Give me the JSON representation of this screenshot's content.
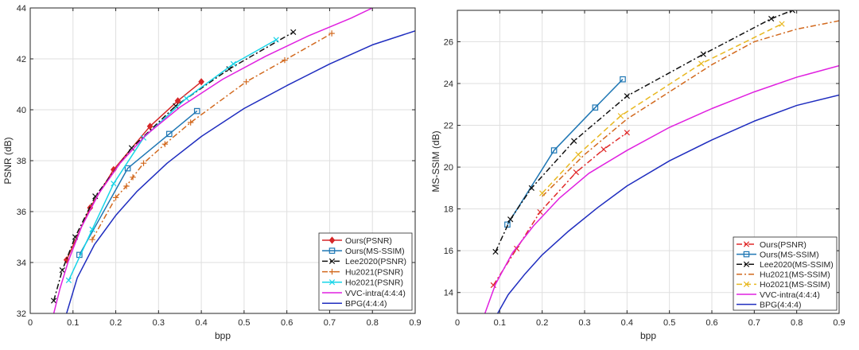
{
  "chart_data": [
    {
      "type": "line",
      "xlabel": "bpp",
      "ylabel": "PSNR (dB)",
      "xlim": [
        0,
        0.9
      ],
      "ylim": [
        32,
        44
      ],
      "xticks": [
        0,
        0.1,
        0.2,
        0.3,
        0.4,
        0.5,
        0.6,
        0.7,
        0.8,
        0.9
      ],
      "yticks": [
        32,
        34,
        36,
        38,
        40,
        42,
        44
      ],
      "legend_position": "bottom-right",
      "series": [
        {
          "name": "Ours(PSNR)",
          "color": "#d62728",
          "dash": "solid",
          "marker": "diamond",
          "markers": true,
          "x": [
            0.085,
            0.14,
            0.195,
            0.28,
            0.345,
            0.4
          ],
          "y": [
            34.1,
            36.15,
            37.65,
            39.35,
            40.35,
            41.1
          ]
        },
        {
          "name": "Ours(MS-SSIM)",
          "color": "#1f77b4",
          "dash": "solid",
          "marker": "square",
          "markers": true,
          "x": [
            0.115,
            0.228,
            0.325,
            0.39
          ],
          "y": [
            34.3,
            37.7,
            39.05,
            39.95
          ]
        },
        {
          "name": "Lee2020(PSNR)",
          "color": "#111111",
          "dash": "dashdot",
          "marker": "x",
          "markers": true,
          "x": [
            0.055,
            0.075,
            0.105,
            0.152,
            0.237,
            0.34,
            0.465,
            0.615
          ],
          "y": [
            32.5,
            33.7,
            35.0,
            36.6,
            38.5,
            40.15,
            41.6,
            43.05
          ]
        },
        {
          "name": "Hu2021(PSNR)",
          "color": "#d2691e",
          "dash": "dashdot",
          "marker": "plus",
          "markers": true,
          "x": [
            0.145,
            0.2,
            0.225,
            0.24,
            0.265,
            0.315,
            0.375,
            0.505,
            0.595,
            0.705
          ],
          "y": [
            34.9,
            36.55,
            37.0,
            37.35,
            37.9,
            38.65,
            39.5,
            41.1,
            41.95,
            43.0
          ]
        },
        {
          "name": "Ho2021(PSNR)",
          "color": "#17d4e8",
          "dash": "solid",
          "marker": "x",
          "markers": true,
          "x": [
            0.09,
            0.145,
            0.195,
            0.265,
            0.365,
            0.475,
            0.575
          ],
          "y": [
            33.3,
            35.3,
            37.1,
            38.9,
            40.45,
            41.8,
            42.75
          ]
        },
        {
          "name": "VVC-intra(4:4:4)",
          "color": "#e020e0",
          "dash": "solid",
          "marker": "none",
          "markers": false,
          "x": [
            0.055,
            0.07,
            0.09,
            0.12,
            0.16,
            0.21,
            0.27,
            0.35,
            0.45,
            0.55,
            0.65,
            0.75,
            0.8
          ],
          "y": [
            32.0,
            33.0,
            34.1,
            35.4,
            36.7,
            37.9,
            39.0,
            40.1,
            41.2,
            42.1,
            42.9,
            43.6,
            44.0
          ]
        },
        {
          "name": "BPG(4:4:4)",
          "color": "#1f2dbf",
          "dash": "solid",
          "marker": "none",
          "markers": false,
          "x": [
            0.085,
            0.11,
            0.15,
            0.2,
            0.25,
            0.32,
            0.4,
            0.5,
            0.6,
            0.7,
            0.8,
            0.9
          ],
          "y": [
            32.0,
            33.4,
            34.7,
            35.85,
            36.8,
            37.9,
            38.95,
            40.05,
            40.95,
            41.8,
            42.55,
            43.1
          ]
        }
      ]
    },
    {
      "type": "line",
      "xlabel": "bpp",
      "ylabel": "MS-SSIM (dB)",
      "xlim": [
        0,
        0.9
      ],
      "ylim": [
        13,
        27.5
      ],
      "xticks": [
        0,
        0.1,
        0.2,
        0.3,
        0.4,
        0.5,
        0.6,
        0.7,
        0.8,
        0.9
      ],
      "yticks": [
        14,
        16,
        18,
        20,
        22,
        24,
        26
      ],
      "legend_position": "bottom-right",
      "series": [
        {
          "name": "Ours(PSNR)",
          "color": "#e02828",
          "dash": "dashdot",
          "marker": "x",
          "markers": true,
          "x": [
            0.085,
            0.14,
            0.195,
            0.28,
            0.345,
            0.4
          ],
          "y": [
            14.35,
            16.1,
            17.85,
            19.75,
            20.85,
            21.65
          ]
        },
        {
          "name": "Ours(MS-SSIM)",
          "color": "#1f77b4",
          "dash": "solid",
          "marker": "square",
          "markers": true,
          "x": [
            0.118,
            0.228,
            0.325,
            0.39
          ],
          "y": [
            17.25,
            20.8,
            22.85,
            24.2
          ]
        },
        {
          "name": "Lee2020(MS-SSIM)",
          "color": "#111111",
          "dash": "dashdot",
          "marker": "x",
          "markers": true,
          "x": [
            0.09,
            0.125,
            0.175,
            0.275,
            0.4,
            0.58,
            0.74,
            0.79
          ],
          "y": [
            15.95,
            17.5,
            19.0,
            21.25,
            23.4,
            25.4,
            27.1,
            27.5
          ]
        },
        {
          "name": "Hu2021(MS-SSIM)",
          "color": "#d2691e",
          "dash": "dashdot",
          "marker": "none",
          "markers": false,
          "x": [
            0.2,
            0.3,
            0.4,
            0.5,
            0.6,
            0.7,
            0.8,
            0.9
          ],
          "y": [
            18.6,
            20.6,
            22.3,
            23.6,
            24.9,
            26.0,
            26.6,
            27.0
          ]
        },
        {
          "name": "Ho2021(MS-SSIM)",
          "color": "#e8b820",
          "dash": "dashed",
          "marker": "x",
          "markers": true,
          "x": [
            0.2,
            0.285,
            0.385,
            0.575,
            0.765
          ],
          "y": [
            18.75,
            20.6,
            22.45,
            24.95,
            26.85
          ]
        },
        {
          "name": "VVC-intra(4:4:4)",
          "color": "#e020e0",
          "dash": "solid",
          "marker": "none",
          "markers": false,
          "x": [
            0.065,
            0.09,
            0.13,
            0.18,
            0.24,
            0.31,
            0.4,
            0.5,
            0.6,
            0.7,
            0.8,
            0.9
          ],
          "y": [
            13.0,
            14.4,
            15.9,
            17.2,
            18.5,
            19.7,
            20.8,
            21.9,
            22.8,
            23.6,
            24.3,
            24.85
          ]
        },
        {
          "name": "BPG(4:4:4)",
          "color": "#1f2dbf",
          "dash": "solid",
          "marker": "none",
          "markers": false,
          "x": [
            0.095,
            0.12,
            0.16,
            0.2,
            0.26,
            0.33,
            0.4,
            0.5,
            0.6,
            0.7,
            0.8,
            0.9
          ],
          "y": [
            13.0,
            13.9,
            14.9,
            15.8,
            16.9,
            18.05,
            19.1,
            20.3,
            21.3,
            22.2,
            22.95,
            23.45
          ]
        }
      ]
    }
  ]
}
